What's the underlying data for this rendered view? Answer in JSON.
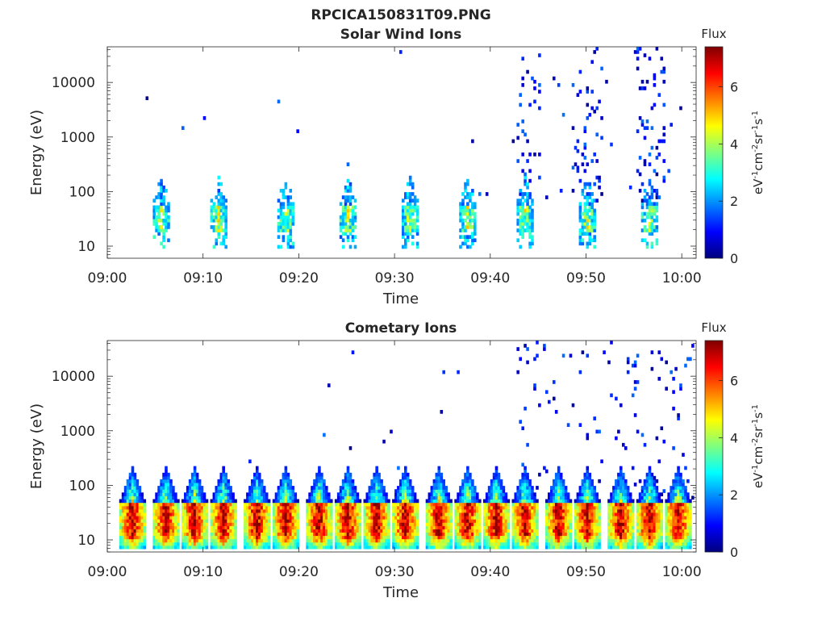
{
  "figure": {
    "title": "RPCICA150831T09.PNG"
  },
  "colormap": [
    "#00007f",
    "#0000ff",
    "#007fff",
    "#00ffff",
    "#7fff7f",
    "#ffff00",
    "#ff7f00",
    "#ff0000",
    "#7f0000"
  ],
  "chart_data": [
    {
      "type": "heatmap",
      "title": "Solar Wind Ions",
      "xlabel": "Time",
      "ylabel": "Energy (eV)",
      "x_ticks": [
        "09:00",
        "09:10",
        "09:20",
        "09:30",
        "09:40",
        "09:50",
        "10:00"
      ],
      "x_range_min": [
        0,
        61.5
      ],
      "y_scale": "log",
      "y_ticks": [
        "10",
        "100",
        "1000",
        "10000"
      ],
      "y_tick_values": [
        10,
        100,
        1000,
        10000
      ],
      "y_range_eV": [
        6,
        45000
      ],
      "colorbar": {
        "label": "Flux",
        "unit_label": "eV-1cm-2sr-1s-1",
        "range": [
          0,
          7.4
        ],
        "ticks": [
          "0",
          "2",
          "4",
          "6"
        ],
        "tick_values": [
          0,
          2,
          4,
          6
        ]
      },
      "bursts_min": [
        5.5,
        11.5,
        18.5,
        25,
        31.5,
        37.5,
        43.5,
        50,
        56.5
      ],
      "core_energy_eV": 32,
      "noise_onset_min": 42.5
    },
    {
      "type": "heatmap",
      "title": "Cometary Ions",
      "xlabel": "Time",
      "ylabel": "Energy (eV)",
      "x_ticks": [
        "09:00",
        "09:10",
        "09:20",
        "09:30",
        "09:40",
        "09:50",
        "10:00"
      ],
      "x_range_min": [
        0,
        61.5
      ],
      "y_scale": "log",
      "y_ticks": [
        "10",
        "100",
        "1000",
        "10000"
      ],
      "y_tick_values": [
        10,
        100,
        1000,
        10000
      ],
      "y_range_eV": [
        6,
        45000
      ],
      "colorbar": {
        "label": "Flux",
        "unit_label": "eV-1cm-2sr-1s-1",
        "range": [
          0,
          7.4
        ],
        "ticks": [
          "0",
          "2",
          "4",
          "6"
        ],
        "tick_values": [
          0,
          2,
          4,
          6
        ]
      },
      "bursts_min": [
        2.5,
        6,
        9,
        12,
        15.5,
        18.5,
        22,
        25,
        28,
        31,
        34.5,
        37.5,
        40.5,
        43.5,
        47,
        50,
        53.5,
        56.5,
        59.5
      ],
      "core_energy_eV": 30,
      "noise_onset_min": 42.5
    }
  ]
}
